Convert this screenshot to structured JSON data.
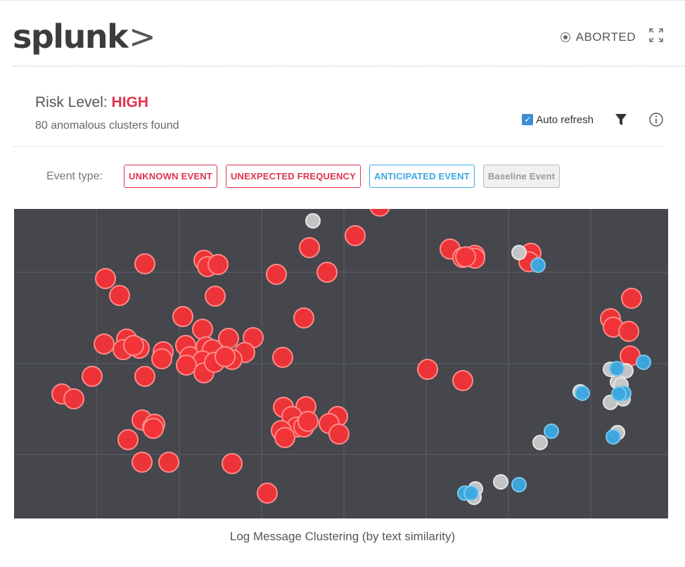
{
  "header": {
    "logo_text": "splunk",
    "logo_chevron": ">",
    "status": "ABORTED",
    "status_icon": "stop-circle-icon",
    "expand_icon": "expand-icon"
  },
  "risk": {
    "label": "Risk Level:",
    "value": "HIGH",
    "clusters_text": "80 anomalous clusters found"
  },
  "controls": {
    "auto_refresh_label": "Auto refresh",
    "auto_refresh_checked": true,
    "filter_icon": "filter-icon",
    "info_icon": "info-icon"
  },
  "event_type": {
    "label": "Event type:",
    "tags": [
      {
        "label": "UNKNOWN EVENT",
        "kind": "unknown"
      },
      {
        "label": "UNEXPECTED FREQUENCY",
        "kind": "unexpected"
      },
      {
        "label": "ANTICIPATED EVENT",
        "kind": "anticipated"
      },
      {
        "label": "Baseline Event",
        "kind": "baseline"
      }
    ]
  },
  "colors": {
    "unknown": "#f23438",
    "anticipated": "#3ba8e0",
    "baseline": "#c8c8c8",
    "plot_bg": "#45474c",
    "grid": "#5c5f66"
  },
  "chart_data": {
    "type": "scatter",
    "title": "",
    "xlabel": "Log Message Clustering (by text similarity)",
    "ylabel": "",
    "xlim": [
      0,
      930
    ],
    "ylim": [
      0,
      440
    ],
    "grid": true,
    "series": [
      {
        "kind": "unknown",
        "points": [
          [
            520,
            -4
          ],
          [
            485,
            38
          ],
          [
            420,
            55
          ],
          [
            445,
            90
          ],
          [
            373,
            93
          ],
          [
            186,
            78
          ],
          [
            130,
            99
          ],
          [
            150,
            123
          ],
          [
            270,
            73
          ],
          [
            275,
            82
          ],
          [
            290,
            79
          ],
          [
            286,
            124
          ],
          [
            240,
            153
          ],
          [
            268,
            171
          ],
          [
            412,
            155
          ],
          [
            160,
            185
          ],
          [
            128,
            192
          ],
          [
            178,
            198
          ],
          [
            155,
            200
          ],
          [
            212,
            203
          ],
          [
            210,
            213
          ],
          [
            244,
            194
          ],
          [
            250,
            210
          ],
          [
            273,
            196
          ],
          [
            282,
            200
          ],
          [
            305,
            184
          ],
          [
            340,
            183
          ],
          [
            328,
            204
          ],
          [
            310,
            214
          ],
          [
            268,
            216
          ],
          [
            245,
            222
          ],
          [
            270,
            233
          ],
          [
            285,
            218
          ],
          [
            300,
            210
          ],
          [
            382,
            211
          ],
          [
            186,
            238
          ],
          [
            111,
            238
          ],
          [
            68,
            263
          ],
          [
            85,
            270
          ],
          [
            620,
            57
          ],
          [
            638,
            69
          ],
          [
            655,
            66
          ],
          [
            735,
            63
          ],
          [
            732,
            75
          ],
          [
            588,
            228
          ],
          [
            638,
            244
          ],
          [
            878,
            127
          ],
          [
            848,
            156
          ],
          [
            852,
            168
          ],
          [
            874,
            174
          ],
          [
            876,
            209
          ],
          [
            383,
            282
          ],
          [
            415,
            281
          ],
          [
            395,
            295
          ],
          [
            402,
            310
          ],
          [
            380,
            315
          ],
          [
            385,
            325
          ],
          [
            412,
            310
          ],
          [
            418,
            302
          ],
          [
            460,
            295
          ],
          [
            448,
            305
          ],
          [
            462,
            320
          ],
          [
            182,
            300
          ],
          [
            197,
            310
          ],
          [
            200,
            306
          ],
          [
            162,
            328
          ],
          [
            182,
            360
          ],
          [
            220,
            360
          ],
          [
            310,
            362
          ],
          [
            360,
            404
          ],
          [
            655,
            70
          ],
          [
            642,
            68
          ],
          [
            170,
            194
          ],
          [
            198,
            312
          ]
        ]
      },
      {
        "kind": "baseline",
        "points": [
          [
            425,
            17
          ],
          [
            718,
            62
          ],
          [
            848,
            228
          ],
          [
            858,
            246
          ],
          [
            863,
            250
          ],
          [
            866,
            270
          ],
          [
            848,
            275
          ],
          [
            858,
            318
          ],
          [
            748,
            332
          ],
          [
            692,
            388
          ],
          [
            656,
            398
          ],
          [
            654,
            410
          ],
          [
            805,
            260
          ],
          [
            870,
            230
          ]
        ]
      },
      {
        "kind": "anticipated",
        "points": [
          [
            745,
            80
          ],
          [
            857,
            227
          ],
          [
            895,
            218
          ],
          [
            867,
            262
          ],
          [
            808,
            262
          ],
          [
            860,
            263
          ],
          [
            852,
            324
          ],
          [
            764,
            316
          ],
          [
            718,
            392
          ],
          [
            641,
            404
          ],
          [
            650,
            404
          ]
        ]
      }
    ]
  },
  "caption": "Log Message Clustering (by text similarity)"
}
